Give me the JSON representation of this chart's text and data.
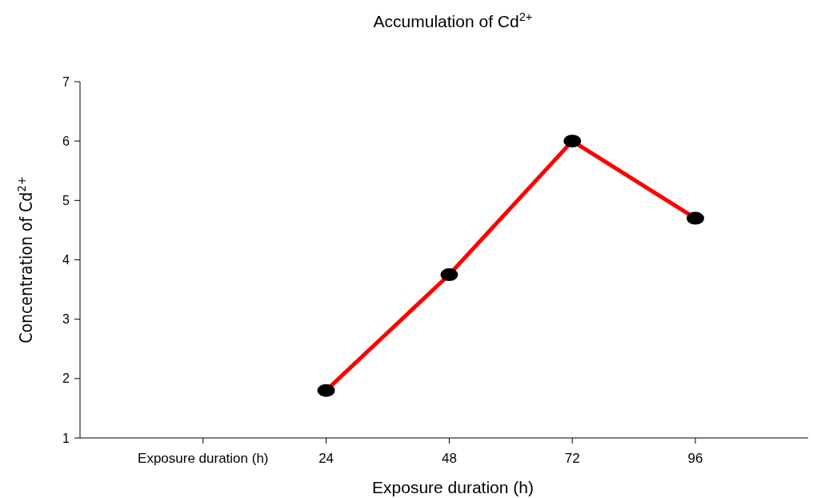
{
  "chart_data": {
    "type": "line",
    "title": "Accumulation of Cd$^{2+}$",
    "xlabel": "Exposure duration (h)",
    "ylabel": "Concentration of Cd$^{2+}$",
    "x": [
      24,
      48,
      72,
      96
    ],
    "series": [
      {
        "color": "#ff0000",
        "values": [
          1.8,
          3.75,
          6.0,
          4.7
        ]
      }
    ],
    "xlim": [
      -24,
      118
    ],
    "xticks": [
      {
        "value": 0,
        "label": "Exposure duration (h)"
      },
      24,
      48,
      72,
      96
    ],
    "ylim": [
      1,
      7
    ],
    "yticks": [
      1,
      2,
      3,
      4,
      5,
      6,
      7
    ],
    "marker": "circle",
    "line_style": "solid",
    "grid": false
  }
}
